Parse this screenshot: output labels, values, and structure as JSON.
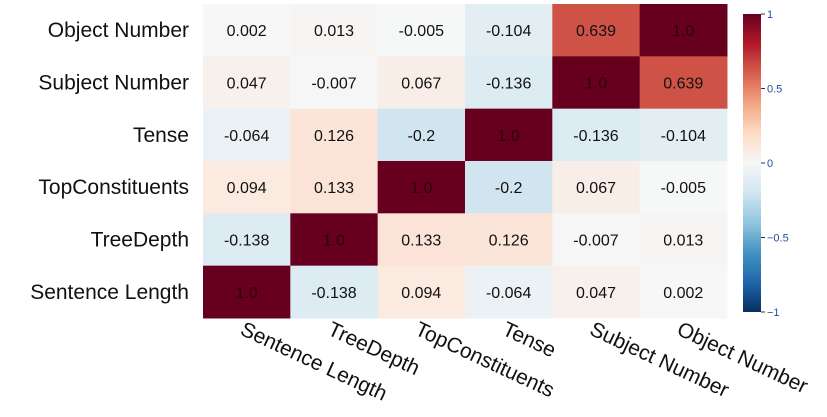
{
  "chart_data": {
    "type": "heatmap",
    "title": "",
    "xlabel": "",
    "ylabel": "",
    "x_categories": [
      "Sentence Length",
      "TreeDepth",
      "TopConstituents",
      "Tense",
      "Subject Number",
      "Object Number"
    ],
    "y_categories": [
      "Object Number",
      "Subject Number",
      "Tense",
      "TopConstituents",
      "TreeDepth",
      "Sentence Length"
    ],
    "values": [
      [
        0.002,
        0.013,
        -0.005,
        -0.104,
        0.639,
        1.0
      ],
      [
        0.047,
        -0.007,
        0.067,
        -0.136,
        1.0,
        0.639
      ],
      [
        -0.064,
        0.126,
        -0.2,
        1.0,
        -0.136,
        -0.104
      ],
      [
        0.094,
        0.133,
        1.0,
        -0.2,
        0.067,
        -0.005
      ],
      [
        -0.138,
        1.0,
        0.133,
        0.126,
        -0.007,
        0.013
      ],
      [
        1.0,
        -0.138,
        0.094,
        -0.064,
        0.047,
        0.002
      ]
    ],
    "value_labels": [
      [
        "0.002",
        "0.013",
        "-0.005",
        "-0.104",
        "0.639",
        "1.0"
      ],
      [
        "0.047",
        "-0.007",
        "0.067",
        "-0.136",
        "1.0",
        "0.639"
      ],
      [
        "-0.064",
        "0.126",
        "-0.2",
        "1.0",
        "-0.136",
        "-0.104"
      ],
      [
        "0.094",
        "0.133",
        "1.0",
        "-0.2",
        "0.067",
        "-0.005"
      ],
      [
        "-0.138",
        "1.0",
        "0.133",
        "0.126",
        "-0.007",
        "0.013"
      ],
      [
        "1.0",
        "-0.138",
        "0.094",
        "-0.064",
        "0.047",
        "0.002"
      ]
    ],
    "colorbar": {
      "range": [
        -1,
        1
      ],
      "ticks": [
        1,
        0.5,
        0,
        -0.5,
        -1
      ],
      "tick_labels": [
        "1",
        "0.5",
        "0",
        "−0.5",
        "−1"
      ],
      "colormap": "RdBu_r",
      "colors": {
        "neg": "#053061",
        "mid": "#f7f7f7",
        "pos": "#67001f"
      }
    },
    "grid": false,
    "legend": "colorbar-right"
  }
}
